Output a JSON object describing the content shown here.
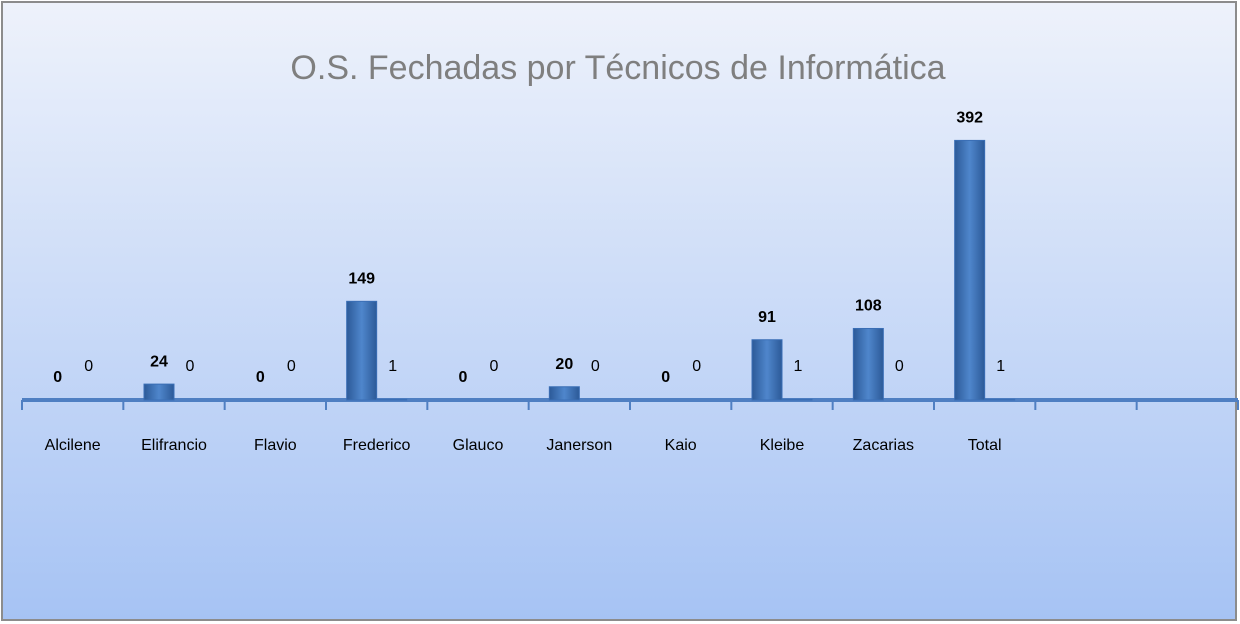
{
  "chart_data": {
    "type": "bar",
    "title": "O.S. Fechadas por Técnicos de Informática",
    "categories": [
      "Alcilene",
      "Elifrancio",
      "Flavio",
      "Frederico",
      "Glauco",
      "Janerson",
      "Kaio",
      "Kleibe",
      "Zacarias",
      "Total",
      null,
      null
    ],
    "series": [
      {
        "color": "#3a6eb5",
        "values": [
          0,
          24,
          0,
          149,
          0,
          20,
          0,
          91,
          108,
          392,
          null,
          null
        ]
      },
      {
        "color": "#3a6eb5",
        "values": [
          0,
          0,
          0,
          1,
          0,
          0,
          0,
          1,
          0,
          1,
          null,
          null
        ]
      }
    ],
    "ylim": [
      0,
      450
    ]
  }
}
